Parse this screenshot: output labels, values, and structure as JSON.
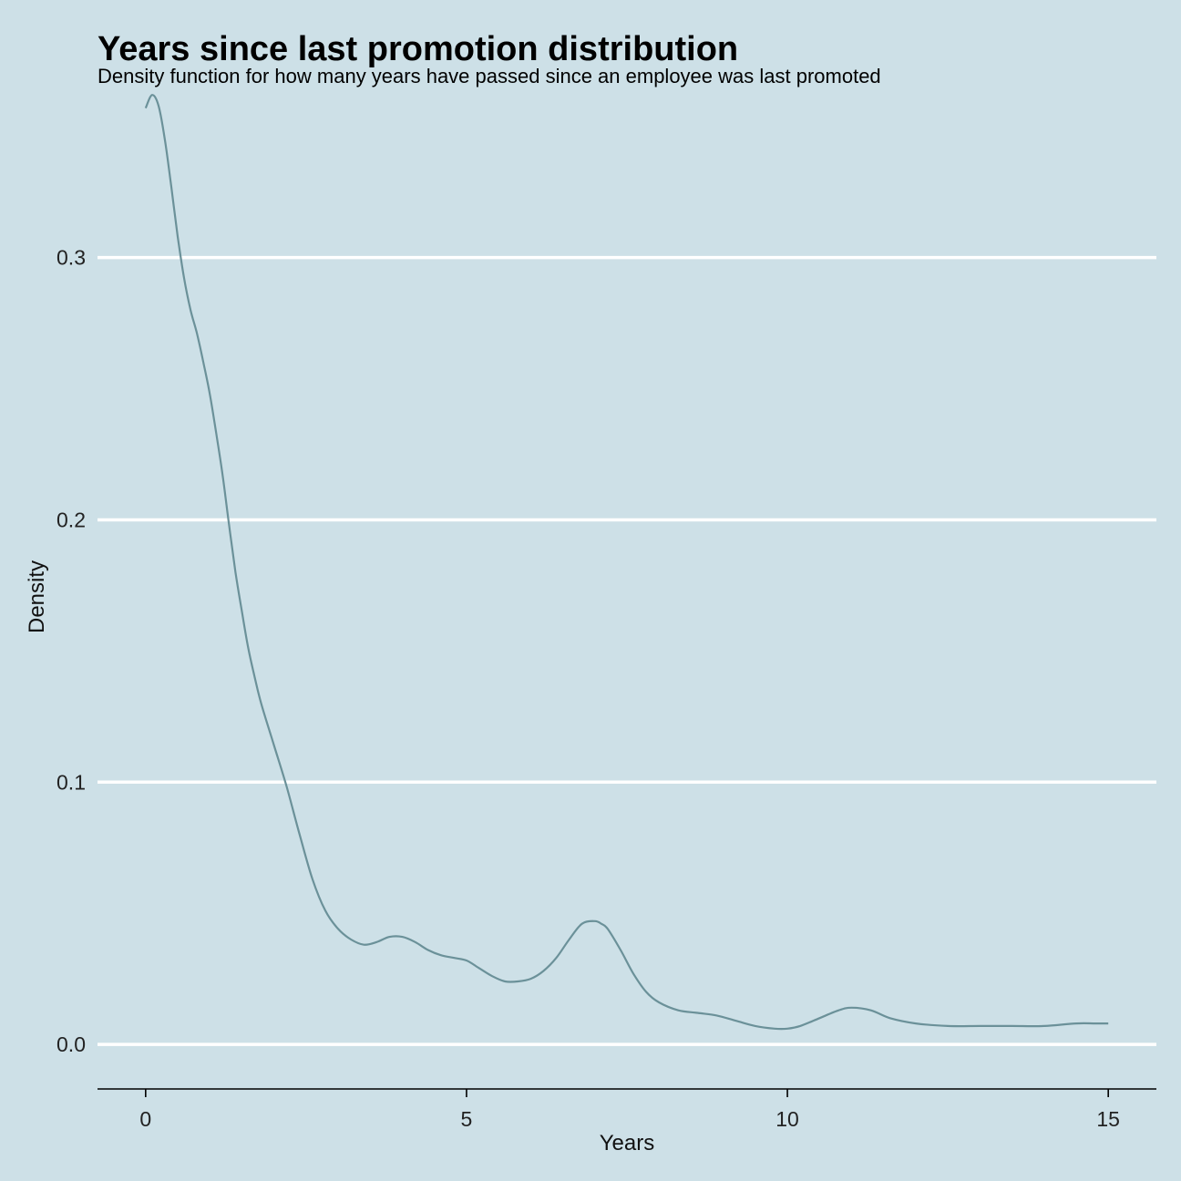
{
  "chart_data": {
    "type": "line",
    "title": "Years since last promotion distribution",
    "subtitle": "Density function for how many years have passed since an employee was last promoted",
    "xlabel": "Years",
    "ylabel": "Density",
    "xlim": [
      -0.75,
      15.75
    ],
    "ylim": [
      -0.017,
      0.36
    ],
    "x_ticks": [
      0,
      5,
      10,
      15
    ],
    "x_tick_labels": [
      "0",
      "5",
      "10",
      "15"
    ],
    "y_ticks": [
      0.0,
      0.1,
      0.2,
      0.3
    ],
    "y_tick_labels": [
      "0.0",
      "0.1",
      "0.2",
      "0.3"
    ],
    "grid": "horizontal",
    "series": [
      {
        "color": "#6b9199",
        "x": [
          0,
          0.1,
          0.2,
          0.3,
          0.4,
          0.5,
          0.6,
          0.7,
          0.8,
          0.9,
          1.0,
          1.1,
          1.2,
          1.3,
          1.4,
          1.5,
          1.6,
          1.7,
          1.8,
          2.0,
          2.2,
          2.4,
          2.6,
          2.8,
          3.0,
          3.2,
          3.4,
          3.6,
          3.8,
          4.0,
          4.2,
          4.4,
          4.6,
          4.8,
          5.0,
          5.2,
          5.4,
          5.6,
          5.8,
          6.0,
          6.2,
          6.4,
          6.6,
          6.8,
          7.0,
          7.1,
          7.2,
          7.4,
          7.6,
          7.8,
          8.0,
          8.3,
          8.6,
          8.9,
          9.2,
          9.5,
          9.8,
          10.0,
          10.2,
          10.5,
          10.8,
          11.0,
          11.3,
          11.6,
          12.0,
          12.5,
          13.0,
          13.5,
          14.0,
          14.5,
          14.8,
          15.0
        ],
        "y": [
          0.357,
          0.362,
          0.358,
          0.345,
          0.327,
          0.308,
          0.292,
          0.28,
          0.271,
          0.26,
          0.248,
          0.233,
          0.217,
          0.198,
          0.18,
          0.165,
          0.151,
          0.14,
          0.13,
          0.114,
          0.098,
          0.08,
          0.063,
          0.051,
          0.044,
          0.04,
          0.038,
          0.039,
          0.041,
          0.041,
          0.039,
          0.036,
          0.034,
          0.033,
          0.032,
          0.029,
          0.026,
          0.024,
          0.024,
          0.025,
          0.028,
          0.033,
          0.04,
          0.046,
          0.047,
          0.046,
          0.044,
          0.036,
          0.027,
          0.02,
          0.016,
          0.013,
          0.012,
          0.011,
          0.009,
          0.007,
          0.006,
          0.006,
          0.007,
          0.01,
          0.013,
          0.014,
          0.013,
          0.01,
          0.008,
          0.007,
          0.007,
          0.007,
          0.007,
          0.008,
          0.008,
          0.008
        ]
      }
    ]
  }
}
